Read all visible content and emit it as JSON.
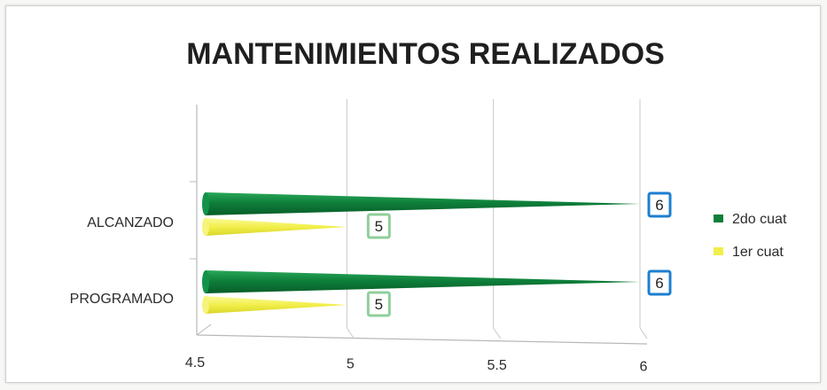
{
  "chart_data": {
    "type": "bar",
    "orientation": "horizontal",
    "title": "MANTENIMIENTOS REALIZADOS",
    "categories": [
      "ALCANZADO",
      "PROGRAMADO"
    ],
    "series": [
      {
        "name": "2do cuat",
        "values": [
          6,
          6
        ],
        "color": "#0e7f3a",
        "label_border": "#1e7fd0"
      },
      {
        "name": "1er cuat",
        "values": [
          5,
          5
        ],
        "color": "#f2ef4a",
        "label_border": "#8fcf9a"
      }
    ],
    "xlim": [
      4.5,
      6
    ],
    "x_ticks": [
      "4.5",
      "5",
      "5.5",
      "6"
    ],
    "grid": true,
    "legend_position": "right"
  }
}
